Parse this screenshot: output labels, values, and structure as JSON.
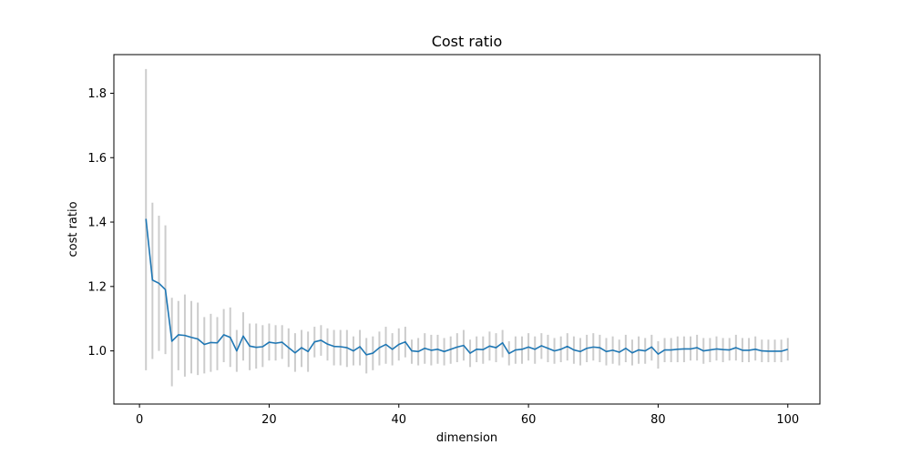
{
  "chart_data": {
    "type": "line",
    "title": "Cost ratio",
    "xlabel": "dimension",
    "ylabel": "cost ratio",
    "xlim": [
      -3.95,
      104.95
    ],
    "ylim": [
      0.835,
      1.92
    ],
    "xticks": [
      0,
      20,
      40,
      60,
      80,
      100
    ],
    "yticks": [
      1.0,
      1.2,
      1.4,
      1.6,
      1.8
    ],
    "xtick_labels": [
      "0",
      "20",
      "40",
      "60",
      "80",
      "100"
    ],
    "ytick_labels": [
      "1.0",
      "1.2",
      "1.4",
      "1.6",
      "1.8"
    ],
    "grid": false,
    "line_color": "#1f77b4",
    "errorbar_color": "#cccccc",
    "x": [
      1,
      2,
      3,
      4,
      5,
      6,
      7,
      8,
      9,
      10,
      11,
      12,
      13,
      14,
      15,
      16,
      17,
      18,
      19,
      20,
      21,
      22,
      23,
      24,
      25,
      26,
      27,
      28,
      29,
      30,
      31,
      32,
      33,
      34,
      35,
      36,
      37,
      38,
      39,
      40,
      41,
      42,
      43,
      44,
      45,
      46,
      47,
      48,
      49,
      50,
      51,
      52,
      53,
      54,
      55,
      56,
      57,
      58,
      59,
      60,
      61,
      62,
      63,
      64,
      65,
      66,
      67,
      68,
      69,
      70,
      71,
      72,
      73,
      74,
      75,
      76,
      77,
      78,
      79,
      80,
      81,
      82,
      83,
      84,
      85,
      86,
      87,
      88,
      89,
      90,
      91,
      92,
      93,
      94,
      95,
      96,
      97,
      98,
      99,
      100
    ],
    "series": [
      {
        "values": [
          1.41,
          1.22,
          1.21,
          1.19,
          1.03,
          1.05,
          1.048,
          1.042,
          1.037,
          1.02,
          1.026,
          1.025,
          1.05,
          1.042,
          1.0,
          1.046,
          1.015,
          1.011,
          1.013,
          1.027,
          1.024,
          1.027,
          1.01,
          0.994,
          1.01,
          0.998,
          1.028,
          1.033,
          1.021,
          1.014,
          1.013,
          1.01,
          1.0,
          1.013,
          0.988,
          0.993,
          1.01,
          1.02,
          1.005,
          1.02,
          1.028,
          1.0,
          0.998,
          1.008,
          1.002,
          1.005,
          0.998,
          1.005,
          1.012,
          1.017,
          0.993,
          1.005,
          1.004,
          1.015,
          1.01,
          1.025,
          0.992,
          1.003,
          1.005,
          1.012,
          1.005,
          1.016,
          1.008,
          1.0,
          1.005,
          1.014,
          1.003,
          0.998,
          1.008,
          1.012,
          1.01,
          0.998,
          1.002,
          0.996,
          1.008,
          0.994,
          1.003,
          1.0,
          1.012,
          0.99,
          1.003,
          1.003,
          1.005,
          1.006,
          1.006,
          1.01,
          1.0,
          1.003,
          1.006,
          1.004,
          1.003,
          1.01,
          1.002,
          1.002,
          1.005,
          1.0,
          0.999,
          0.999,
          0.999,
          1.005
        ],
        "err_low": [
          0.94,
          0.975,
          1.0,
          0.99,
          0.89,
          0.94,
          0.92,
          0.93,
          0.925,
          0.93,
          0.935,
          0.94,
          0.965,
          0.95,
          0.935,
          0.97,
          0.94,
          0.945,
          0.95,
          0.97,
          0.97,
          0.975,
          0.95,
          0.935,
          0.95,
          0.935,
          0.98,
          0.985,
          0.97,
          0.955,
          0.955,
          0.95,
          0.955,
          0.955,
          0.93,
          0.94,
          0.955,
          0.96,
          0.955,
          0.97,
          0.98,
          0.96,
          0.955,
          0.96,
          0.955,
          0.96,
          0.955,
          0.96,
          0.965,
          0.97,
          0.95,
          0.965,
          0.96,
          0.97,
          0.965,
          0.98,
          0.955,
          0.96,
          0.96,
          0.97,
          0.96,
          0.975,
          0.965,
          0.96,
          0.965,
          0.97,
          0.96,
          0.955,
          0.965,
          0.97,
          0.965,
          0.955,
          0.96,
          0.955,
          0.965,
          0.955,
          0.96,
          0.96,
          0.97,
          0.945,
          0.965,
          0.965,
          0.965,
          0.965,
          0.97,
          0.97,
          0.96,
          0.965,
          0.97,
          0.965,
          0.97,
          0.97,
          0.965,
          0.965,
          0.97,
          0.965,
          0.965,
          0.965,
          0.965,
          0.97
        ],
        "err_high": [
          1.875,
          1.46,
          1.42,
          1.39,
          1.165,
          1.155,
          1.175,
          1.155,
          1.15,
          1.105,
          1.115,
          1.105,
          1.13,
          1.135,
          1.065,
          1.12,
          1.085,
          1.085,
          1.08,
          1.085,
          1.08,
          1.08,
          1.07,
          1.055,
          1.065,
          1.06,
          1.075,
          1.08,
          1.07,
          1.065,
          1.065,
          1.065,
          1.045,
          1.065,
          1.04,
          1.045,
          1.06,
          1.075,
          1.055,
          1.07,
          1.075,
          1.035,
          1.04,
          1.055,
          1.05,
          1.05,
          1.04,
          1.045,
          1.055,
          1.065,
          1.035,
          1.045,
          1.045,
          1.06,
          1.055,
          1.065,
          1.03,
          1.045,
          1.045,
          1.055,
          1.045,
          1.055,
          1.05,
          1.04,
          1.045,
          1.055,
          1.045,
          1.04,
          1.05,
          1.055,
          1.05,
          1.04,
          1.045,
          1.035,
          1.05,
          1.035,
          1.045,
          1.04,
          1.05,
          1.03,
          1.04,
          1.04,
          1.045,
          1.045,
          1.045,
          1.05,
          1.04,
          1.04,
          1.045,
          1.04,
          1.04,
          1.05,
          1.04,
          1.04,
          1.045,
          1.035,
          1.035,
          1.035,
          1.035,
          1.04
        ]
      }
    ]
  }
}
